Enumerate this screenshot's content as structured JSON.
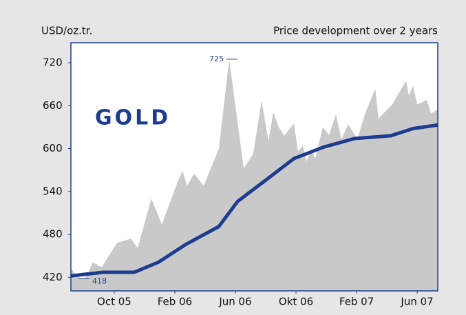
{
  "chart_data": {
    "type": "area-line",
    "title": "GOLD",
    "y_label": "USD/oz.tr.",
    "subtitle": "Price development over 2 years",
    "xlim": [
      -2.86,
      21.36
    ],
    "xticks": [
      {
        "value": 0,
        "label": "Oct 05"
      },
      {
        "value": 4,
        "label": "Feb 06"
      },
      {
        "value": 8,
        "label": "Jun 06"
      },
      {
        "value": 12,
        "label": "Okt 06"
      },
      {
        "value": 16,
        "label": "Feb 07"
      },
      {
        "value": 20,
        "label": "Jun 07"
      }
    ],
    "ylim": [
      401,
      748
    ],
    "yticks": [
      420,
      480,
      540,
      600,
      660,
      720
    ],
    "annotations": [
      "725",
      "418"
    ],
    "series": [
      {
        "type": "area",
        "color": "#c9c9c9",
        "x": [
          -2.86,
          -2.55,
          -2.18,
          -1.86,
          -1.41,
          -0.82,
          0.18,
          1.09,
          1.55,
          2.45,
          3.14,
          4.18,
          4.5,
          4.82,
          5.27,
          5.91,
          6.91,
          7.59,
          8.55,
          9.18,
          9.73,
          10.18,
          10.5,
          10.86,
          11.23,
          11.86,
          12.14,
          12.45,
          12.68,
          13,
          13.27,
          13.77,
          14.18,
          14.64,
          15,
          15.45,
          16.05,
          16.55,
          17.23,
          17.45,
          18.36,
          19.27,
          19.45,
          19.73,
          20,
          20.64,
          20.91,
          21.36
        ],
        "values": [
          433,
          424,
          418,
          420,
          441,
          434,
          468,
          474,
          461,
          530,
          494,
          553,
          569,
          548,
          565,
          548,
          600,
          725,
          572,
          593,
          667,
          610,
          651,
          630,
          618,
          635,
          596,
          604,
          582,
          599,
          586,
          630,
          619,
          648,
          613,
          634,
          613,
          648,
          684,
          642,
          662,
          695,
          674,
          688,
          662,
          668,
          649,
          655
        ]
      },
      {
        "type": "line",
        "color": "#1d3c8f",
        "x": [
          -2.86,
          -0.73,
          1.32,
          2.91,
          4.73,
          6.91,
          8.14,
          9.95,
          11.86,
          13.82,
          15.86,
          18.27,
          19.73,
          21.36
        ],
        "values": [
          422,
          427,
          427,
          441,
          466,
          491,
          526,
          555,
          586,
          602,
          614,
          618,
          628,
          633
        ]
      }
    ]
  }
}
